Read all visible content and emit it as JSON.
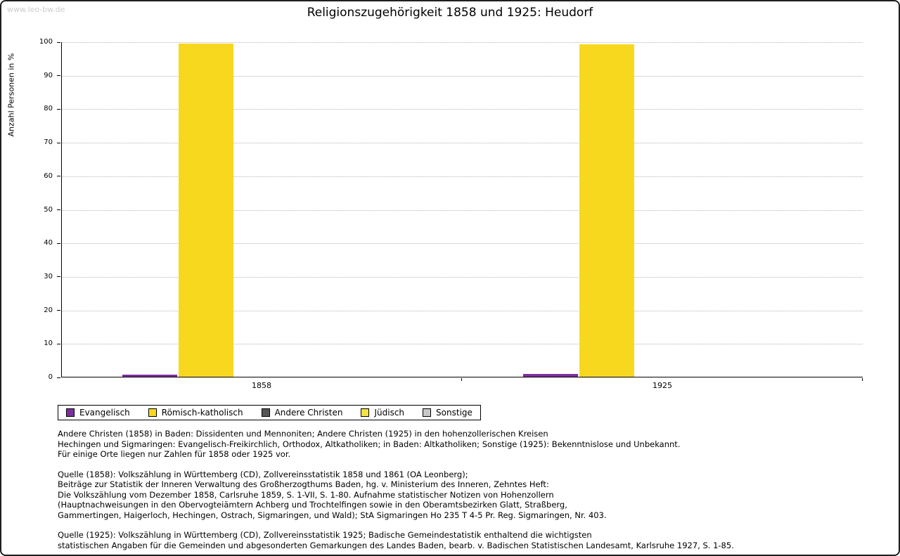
{
  "page": {
    "watermark": "www.leo-bw.de"
  },
  "chart_data": {
    "type": "bar",
    "title": "Religionszugehörigkeit 1858 und 1925: Heudorf",
    "xlabel": "",
    "ylabel": "Anzahl Personen in %",
    "ylim": [
      0,
      100
    ],
    "ytick_step": 10,
    "grid": true,
    "legend_position": "bottom-left",
    "categories": [
      "1858",
      "1925"
    ],
    "series": [
      {
        "name": "Evangelisch",
        "color": "#7d2e9e",
        "values": [
          0.6,
          0.9
        ]
      },
      {
        "name": "Römisch-katholisch",
        "color": "#f8d81f",
        "values": [
          99.4,
          99.1
        ]
      },
      {
        "name": "Andere Christen",
        "color": "#555555",
        "values": [
          0,
          0
        ]
      },
      {
        "name": "Jüdisch",
        "color": "#f5e14a",
        "values": [
          0,
          0
        ]
      },
      {
        "name": "Sonstige",
        "color": "#c8c8c8",
        "values": [
          0,
          0
        ]
      }
    ]
  },
  "notes": [
    [
      "Andere Christen (1858) in Baden: Dissidenten und Mennoniten; Andere Christen (1925) in den hohenzollerischen Kreisen",
      "Hechingen und Sigmaringen: Evangelisch-Freikirchlich, Orthodox, Altkatholiken; in Baden: Altkatholiken; Sonstige (1925): Bekenntnislose und Unbekannt.",
      "Für einige Orte liegen nur Zahlen für 1858 oder 1925 vor."
    ],
    [
      "Quelle (1858): Volkszählung in Württemberg (CD), Zollvereinsstatistik 1858 und 1861 (OA Leonberg);",
      "Beiträge zur Statistik der Inneren Verwaltung des Großherzogthums Baden, hg. v. Ministerium des Inneren, Zehntes Heft:",
      "Die Volkszählung vom Dezember 1858, Carlsruhe 1859, S. 1-VII, S. 1-80. Aufnahme statistischer Notizen von Hohenzollern",
      "(Hauptnachweisungen in den Obervogteiämtern Achberg und Trochtelfingen sowie in den Oberamtsbezirken Glatt, Straßberg,",
      "Gammertingen, Haigerloch, Hechingen, Ostrach, Sigmaringen, und Wald); StA Sigmaringen Ho 235 T 4-5 Pr. Reg. Sigmaringen, Nr. 403."
    ],
    [
      "Quelle (1925): Volkszählung in Württemberg (CD), Zollvereinsstatistik 1925; Badische Gemeindestatistik enthaltend die wichtigsten",
      "statistischen Angaben für die Gemeinden und abgesonderten Gemarkungen des Landes Baden, bearb. v. Badischen Statistischen Landesamt, Karlsruhe 1927, S. 1-85."
    ]
  ]
}
